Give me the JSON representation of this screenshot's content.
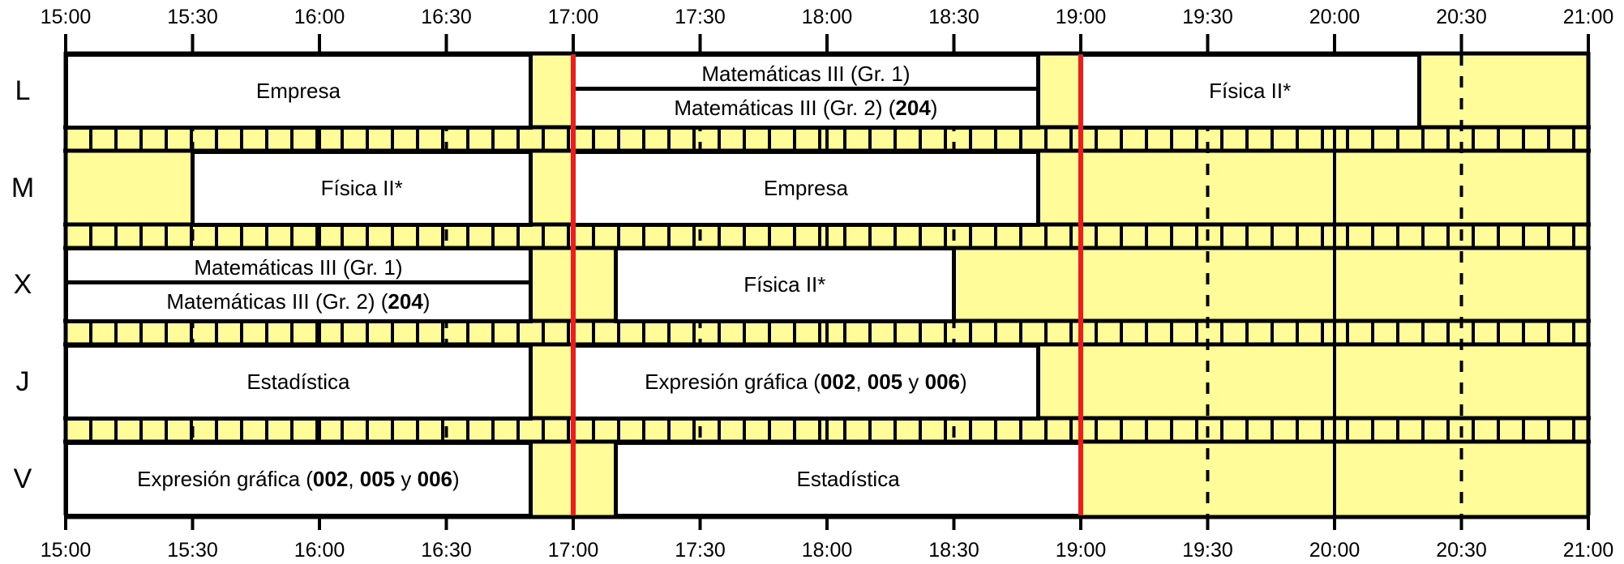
{
  "schedule": {
    "time_ticks": [
      "15:00",
      "15:30",
      "16:00",
      "16:30",
      "17:00",
      "17:30",
      "18:00",
      "18:30",
      "19:00",
      "19:30",
      "20:00",
      "20:30",
      "21:00"
    ],
    "days": [
      "L",
      "M",
      "X",
      "J",
      "V"
    ],
    "colors": {
      "free_slot": "#fffc99",
      "course": "#ffffff",
      "border": "#000000",
      "marker_line": "#ee1c1c"
    },
    "marker_times": [
      "17:00",
      "19:00"
    ],
    "courses": [
      {
        "day": "L",
        "start": "15:00",
        "end": "16:50",
        "lane": "full",
        "text": "Empresa"
      },
      {
        "day": "L",
        "start": "17:00",
        "end": "18:50",
        "lane": "top",
        "text": "Matemáticas III (Gr. 1)"
      },
      {
        "day": "L",
        "start": "17:00",
        "end": "18:50",
        "lane": "bottom",
        "text": "Matemáticas III (Gr. 2) (",
        "bold": "204",
        "text_after": ")"
      },
      {
        "day": "L",
        "start": "19:00",
        "end": "20:20",
        "lane": "full",
        "text": "Física II*"
      },
      {
        "day": "M",
        "start": "15:30",
        "end": "16:50",
        "lane": "full",
        "text": "Física II*"
      },
      {
        "day": "M",
        "start": "17:00",
        "end": "18:50",
        "lane": "full",
        "text": "Empresa"
      },
      {
        "day": "X",
        "start": "15:00",
        "end": "16:50",
        "lane": "top",
        "text": "Matemáticas III (Gr. 1)"
      },
      {
        "day": "X",
        "start": "15:00",
        "end": "16:50",
        "lane": "bottom",
        "text": "Matemáticas III (Gr. 2) (",
        "bold": "204",
        "text_after": ")"
      },
      {
        "day": "X",
        "start": "17:10",
        "end": "18:30",
        "lane": "full",
        "text": "Física II*"
      },
      {
        "day": "J",
        "start": "15:00",
        "end": "16:50",
        "lane": "full",
        "text": "Estadística"
      },
      {
        "day": "J",
        "start": "17:00",
        "end": "18:50",
        "lane": "full",
        "text": "Expresión gráfica (",
        "bold": "002",
        "text_mid": ", ",
        "bold2": "005",
        "text_mid2": " y ",
        "bold3": "006",
        "text_after": ")"
      },
      {
        "day": "V",
        "start": "15:00",
        "end": "16:50",
        "lane": "full",
        "text": "Expresión gráfica (",
        "bold": "002",
        "text_mid": ", ",
        "bold2": "005",
        "text_mid2": " y ",
        "bold3": "006",
        "text_after": ")"
      },
      {
        "day": "V",
        "start": "17:10",
        "end": "19:00",
        "lane": "full",
        "text": "Estadística"
      }
    ]
  }
}
